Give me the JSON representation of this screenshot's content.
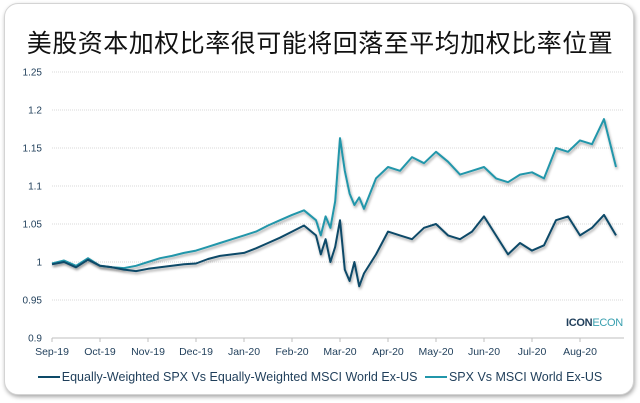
{
  "title": "美股资本加权比率很可能将回落至平均加权比率位置",
  "logo": {
    "part1": "ICON",
    "part2": "ECON"
  },
  "colors": {
    "series_dark": "#0d4a68",
    "series_light": "#2196aa",
    "grid": "#d9d9d9",
    "axis_text": "#1f3e5a"
  },
  "chart_data": {
    "type": "line",
    "title": "美股资本加权比率很可能将回落至平均加权比率位置",
    "xlabel": "",
    "ylabel": "",
    "ylim": [
      0.9,
      1.25
    ],
    "yticks": [
      "0.9",
      "0.95",
      "1",
      "1.05",
      "1.1",
      "1.15",
      "1.2",
      "1.25"
    ],
    "xticks": [
      "Sep-19",
      "Oct-19",
      "Nov-19",
      "Dec-19",
      "Jan-20",
      "Feb-20",
      "Mar-20",
      "Apr-20",
      "May-20",
      "Jun-20",
      "Jul-20",
      "Aug-20"
    ],
    "grid": true,
    "legend_position": "bottom",
    "x_months_from_sep19": [
      0,
      0.25,
      0.5,
      0.75,
      1,
      1.25,
      1.5,
      1.75,
      2,
      2.25,
      2.5,
      2.75,
      3,
      3.25,
      3.5,
      3.75,
      4,
      4.25,
      4.5,
      4.75,
      5,
      5.25,
      5.5,
      5.6,
      5.7,
      5.8,
      5.9,
      6.0,
      6.1,
      6.2,
      6.3,
      6.4,
      6.5,
      6.75,
      7,
      7.25,
      7.5,
      7.75,
      8,
      8.25,
      8.5,
      8.75,
      9,
      9.25,
      9.5,
      9.75,
      10,
      10.25,
      10.5,
      10.75,
      11,
      11.25,
      11.5,
      11.75
    ],
    "series": [
      {
        "name": "Equally-Weighted SPX Vs Equally-Weighted MSCI World Ex-US",
        "color": "#0d4a68",
        "values": [
          0.997,
          1.0,
          0.993,
          1.003,
          0.995,
          0.993,
          0.99,
          0.988,
          0.991,
          0.993,
          0.995,
          0.997,
          0.998,
          1.004,
          1.008,
          1.01,
          1.012,
          1.018,
          1.025,
          1.032,
          1.04,
          1.048,
          1.035,
          1.01,
          1.03,
          1.0,
          1.02,
          1.055,
          0.99,
          0.975,
          1.0,
          0.968,
          0.985,
          1.01,
          1.04,
          1.035,
          1.03,
          1.045,
          1.05,
          1.035,
          1.03,
          1.04,
          1.06,
          1.035,
          1.01,
          1.025,
          1.015,
          1.022,
          1.055,
          1.06,
          1.035,
          1.045,
          1.062,
          1.035
        ]
      },
      {
        "name": "SPX Vs MSCI World Ex-US",
        "color": "#2196aa",
        "values": [
          0.998,
          1.002,
          0.995,
          1.005,
          0.995,
          0.993,
          0.992,
          0.995,
          1.0,
          1.005,
          1.008,
          1.012,
          1.015,
          1.02,
          1.025,
          1.03,
          1.035,
          1.04,
          1.048,
          1.055,
          1.062,
          1.068,
          1.055,
          1.035,
          1.06,
          1.045,
          1.08,
          1.163,
          1.12,
          1.09,
          1.075,
          1.085,
          1.07,
          1.11,
          1.125,
          1.12,
          1.138,
          1.13,
          1.145,
          1.132,
          1.115,
          1.12,
          1.125,
          1.11,
          1.105,
          1.115,
          1.118,
          1.11,
          1.15,
          1.145,
          1.16,
          1.155,
          1.188,
          1.125
        ]
      }
    ]
  },
  "legend": [
    {
      "label": "Equally-Weighted SPX Vs Equally-Weighted MSCI World Ex-US",
      "color": "#0d4a68"
    },
    {
      "label": "SPX Vs MSCI World Ex-US",
      "color": "#2196aa"
    }
  ]
}
